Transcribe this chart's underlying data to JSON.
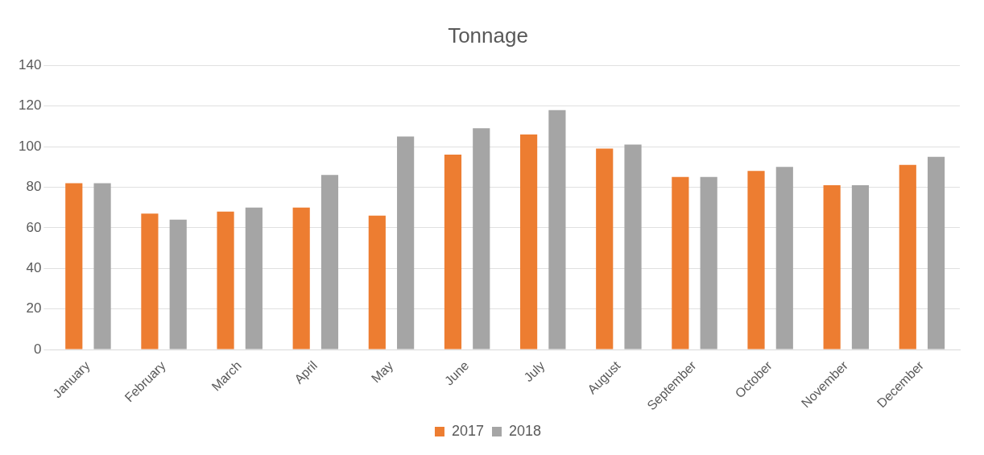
{
  "chart_data": {
    "type": "bar",
    "title": "Tonnage",
    "categories": [
      "January",
      "February",
      "March",
      "April",
      "May",
      "June",
      "July",
      "August",
      "September",
      "October",
      "November",
      "December"
    ],
    "series": [
      {
        "name": "2017",
        "color": "#ed7d31",
        "values": [
          82,
          67,
          68,
          70,
          66,
          96,
          106,
          99,
          85,
          88,
          81,
          91
        ]
      },
      {
        "name": "2018",
        "color": "#a5a5a5",
        "values": [
          82,
          64,
          70,
          86,
          105,
          109,
          118,
          101,
          85,
          90,
          81,
          95
        ]
      }
    ],
    "ylim": [
      0,
      140
    ],
    "yticks": [
      0,
      20,
      40,
      60,
      80,
      100,
      120,
      140
    ],
    "grid": "y",
    "legend": "bottom"
  }
}
